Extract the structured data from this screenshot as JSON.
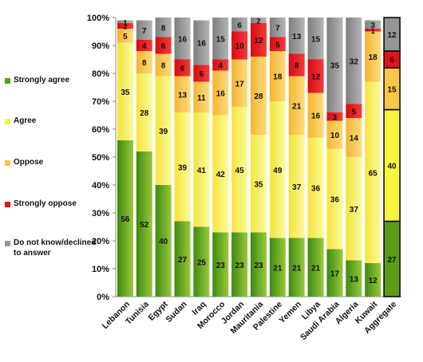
{
  "chart_data": {
    "type": "bar",
    "stacked": true,
    "categories": [
      "Lebanon",
      "Tunisia",
      "Egypt",
      "Sudan",
      "Iraq",
      "Morocco",
      "Jordan",
      "Mauritania",
      "Palestine",
      "Yemen",
      "Libya",
      "Saudi Arabia",
      "Algeria",
      "Kuwait",
      "Aggregate"
    ],
    "series": [
      {
        "name": "Strongly agree",
        "color": "#5a9e16",
        "values": [
          56,
          52,
          40,
          27,
          25,
          23,
          23,
          23,
          21,
          21,
          21,
          17,
          13,
          12,
          27
        ]
      },
      {
        "name": "Agree",
        "color": "#f5f542",
        "values": [
          35,
          28,
          39,
          39,
          41,
          42,
          45,
          35,
          49,
          37,
          36,
          36,
          37,
          65,
          40
        ]
      },
      {
        "name": "Oppose",
        "color": "#f8c648",
        "values": [
          5,
          8,
          8,
          13,
          11,
          16,
          17,
          28,
          18,
          21,
          16,
          10,
          14,
          18,
          15
        ]
      },
      {
        "name": "Strongly oppose",
        "color": "#e8101a",
        "values": [
          2,
          4,
          6,
          6,
          6,
          4,
          10,
          12,
          5,
          8,
          12,
          3,
          5,
          1,
          6
        ]
      },
      {
        "name": "Do not know/declined to answer",
        "color": "#959595",
        "values": [
          1,
          7,
          8,
          16,
          16,
          15,
          6,
          2,
          7,
          13,
          15,
          35,
          32,
          3,
          12
        ]
      }
    ],
    "ylim": [
      0,
      100
    ],
    "yticks": [
      "0%",
      "10%",
      "20%",
      "30%",
      "40%",
      "50%",
      "60%",
      "70%",
      "80%",
      "90%",
      "100%"
    ],
    "legend_position": "left",
    "highlighted_category": "Aggregate",
    "title": "",
    "xlabel": "",
    "ylabel": ""
  }
}
